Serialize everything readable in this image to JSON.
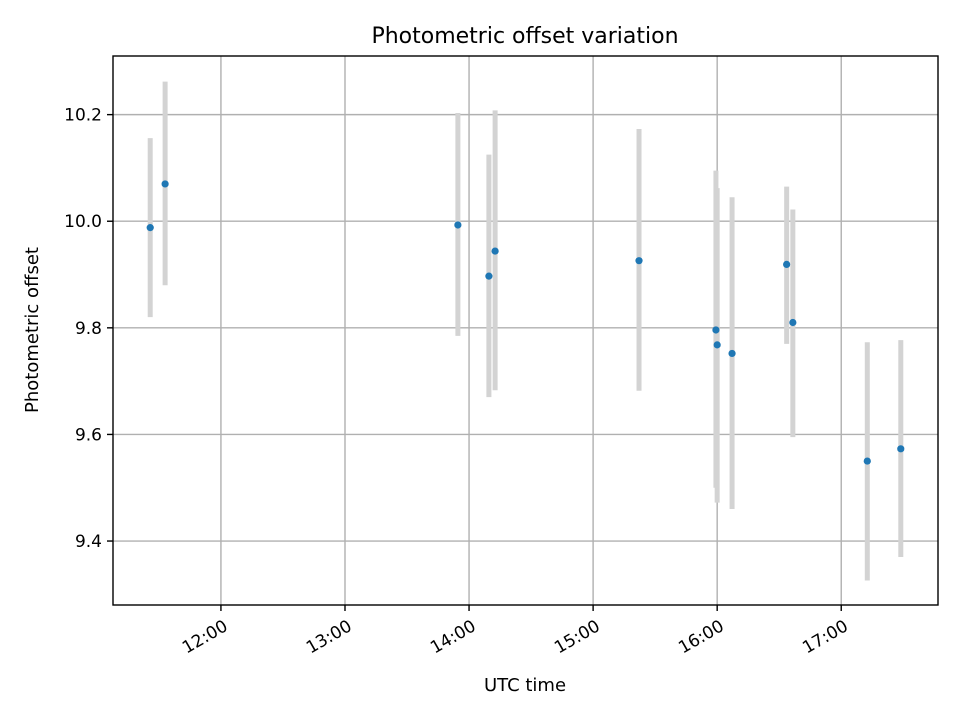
{
  "chart_data": {
    "type": "scatter",
    "title": "Photometric offset variation",
    "xlabel": "UTC time",
    "ylabel": "Photometric offset",
    "x_unit": "hours UTC",
    "xlim": [
      11.13,
      17.78
    ],
    "ylim": [
      9.28,
      10.31
    ],
    "x_ticks": [
      {
        "value": 12,
        "label": "12:00"
      },
      {
        "value": 13,
        "label": "13:00"
      },
      {
        "value": 14,
        "label": "14:00"
      },
      {
        "value": 15,
        "label": "15:00"
      },
      {
        "value": 16,
        "label": "16:00"
      },
      {
        "value": 17,
        "label": "17:00"
      }
    ],
    "y_ticks": [
      {
        "value": 9.4,
        "label": "9.4"
      },
      {
        "value": 9.6,
        "label": "9.6"
      },
      {
        "value": 9.8,
        "label": "9.8"
      },
      {
        "value": 10.0,
        "label": "10.0"
      },
      {
        "value": 10.2,
        "label": "10.2"
      }
    ],
    "grid": true,
    "marker_color": "#1f77b4",
    "errorbar_color": "#d3d3d3",
    "points": [
      {
        "x": 11.43,
        "y": 9.988,
        "ylow": 9.82,
        "yhigh": 10.156
      },
      {
        "x": 11.55,
        "y": 10.07,
        "ylow": 9.88,
        "yhigh": 10.262
      },
      {
        "x": 13.91,
        "y": 9.993,
        "ylow": 9.785,
        "yhigh": 10.203
      },
      {
        "x": 14.16,
        "y": 9.897,
        "ylow": 9.67,
        "yhigh": 10.125
      },
      {
        "x": 14.21,
        "y": 9.944,
        "ylow": 9.683,
        "yhigh": 10.208
      },
      {
        "x": 15.37,
        "y": 9.926,
        "ylow": 9.682,
        "yhigh": 10.173
      },
      {
        "x": 15.99,
        "y": 9.796,
        "ylow": 9.5,
        "yhigh": 10.095
      },
      {
        "x": 16.0,
        "y": 9.768,
        "ylow": 9.472,
        "yhigh": 10.062
      },
      {
        "x": 16.12,
        "y": 9.752,
        "ylow": 9.46,
        "yhigh": 10.045
      },
      {
        "x": 16.56,
        "y": 9.919,
        "ylow": 9.77,
        "yhigh": 10.065
      },
      {
        "x": 16.61,
        "y": 9.81,
        "ylow": 9.595,
        "yhigh": 10.022
      },
      {
        "x": 17.21,
        "y": 9.55,
        "ylow": 9.326,
        "yhigh": 9.773
      },
      {
        "x": 17.48,
        "y": 9.573,
        "ylow": 9.37,
        "yhigh": 9.777
      }
    ]
  }
}
